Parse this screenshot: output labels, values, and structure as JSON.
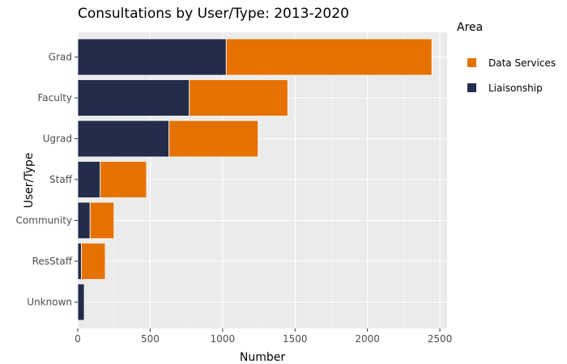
{
  "chart_data": {
    "type": "bar",
    "orientation": "horizontal",
    "stacked": true,
    "title": "Consultations by User/Type: 2013-2020",
    "xlabel": "Number",
    "ylabel": "User/Type",
    "xlim": [
      0,
      2550
    ],
    "xticks": [
      0,
      500,
      1000,
      1500,
      2000,
      2500
    ],
    "categories": [
      "Grad",
      "Faculty",
      "Ugrad",
      "Staff",
      "Community",
      "ResStaff",
      "Unknown"
    ],
    "series": [
      {
        "name": "Liaisonship",
        "color": "#232d4b",
        "values": [
          1025,
          770,
          630,
          155,
          85,
          25,
          45
        ]
      },
      {
        "name": "Data Services",
        "color": "#e57200",
        "values": [
          1420,
          680,
          615,
          320,
          165,
          165,
          0
        ]
      }
    ],
    "legend": {
      "title": "Area",
      "placement": "right",
      "order": [
        "Data Services",
        "Liaisonship"
      ]
    },
    "grid": true,
    "panel_background": "#ebebeb"
  }
}
